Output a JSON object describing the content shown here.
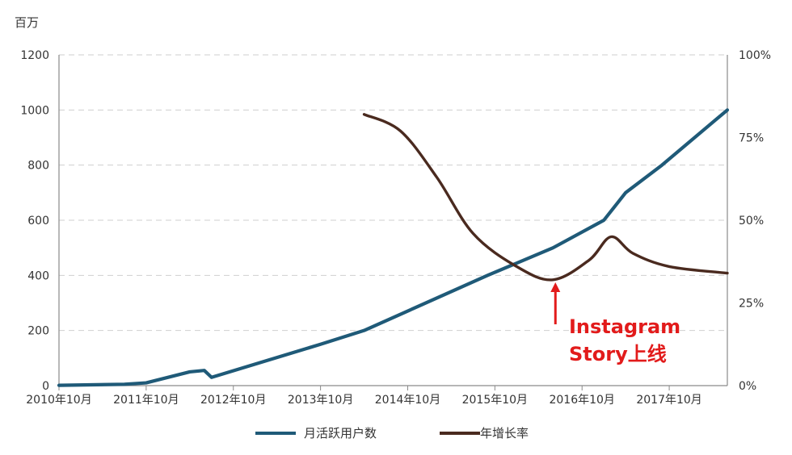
{
  "chart_data": {
    "type": "line",
    "left_unit": "百万",
    "x_tick_labels": [
      "2010年10月",
      "2011年10月",
      "2012年10月",
      "2013年10月",
      "2014年10月",
      "2015年10月",
      "2016年10月",
      "2017年10月"
    ],
    "x": [
      "2010-10",
      "2011-10",
      "2012-10",
      "2013-10",
      "2014-10",
      "2015-10",
      "2016-10",
      "2017-10",
      "2018-06"
    ],
    "y_left": {
      "ticks": [
        "0",
        "200",
        "400",
        "600",
        "800",
        "1000",
        "1200"
      ],
      "lim": [
        0,
        1200
      ]
    },
    "y_right": {
      "ticks": [
        "0%",
        "25%",
        "50%",
        "75%",
        "100%"
      ],
      "lim": [
        0,
        100
      ]
    },
    "grid": "horizontal dashed",
    "legend_position": "bottom",
    "series": [
      {
        "name": "月活跃用户数",
        "axis": "left",
        "color": "#1f5a78",
        "points": [
          [
            "2010-10",
            1
          ],
          [
            "2011-07",
            5
          ],
          [
            "2011-10",
            10
          ],
          [
            "2012-04",
            50
          ],
          [
            "2012-06",
            55
          ],
          [
            "2012-07",
            30
          ],
          [
            "2013-10",
            150
          ],
          [
            "2014-04",
            200
          ],
          [
            "2015-09",
            400
          ],
          [
            "2016-06",
            500
          ],
          [
            "2017-01",
            600
          ],
          [
            "2017-04",
            700
          ],
          [
            "2017-09",
            800
          ],
          [
            "2018-06",
            1000
          ]
        ]
      },
      {
        "name": "年增长率",
        "axis": "right",
        "color": "#4a2a1f",
        "points": [
          [
            "2014-04",
            82
          ],
          [
            "2014-09",
            77
          ],
          [
            "2015-02",
            63
          ],
          [
            "2015-07",
            46
          ],
          [
            "2016-01",
            36
          ],
          [
            "2016-06",
            32
          ],
          [
            "2016-11",
            38
          ],
          [
            "2017-02",
            45
          ],
          [
            "2017-05",
            40
          ],
          [
            "2017-10",
            36
          ],
          [
            "2018-06",
            34
          ]
        ]
      }
    ],
    "annotation": {
      "lines": [
        "Instagram",
        "Story上线"
      ],
      "x": "2016-06",
      "color": "#e21b1b"
    }
  }
}
